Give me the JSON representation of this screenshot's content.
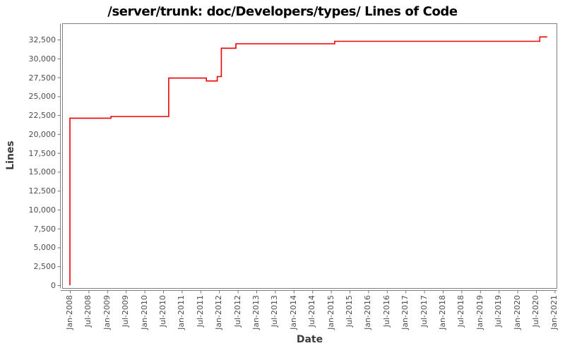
{
  "chart_data": {
    "type": "line",
    "style": "step-after",
    "title": "/server/trunk: doc/Developers/types/ Lines of Code",
    "xlabel": "Date",
    "ylabel": "Lines",
    "grid": false,
    "legend": false,
    "line_color": "#ee0000",
    "axis_color": "#808080",
    "tick_color": "#757575",
    "tick_label_color": "#4d4d4d",
    "xlim": [
      "Jan-2008",
      "Jan-2021"
    ],
    "ylim": [
      0,
      32500
    ],
    "y_axis": {
      "min": 0,
      "max": 32500,
      "step": 2500,
      "tick_labels": [
        "0",
        "2,500",
        "5,000",
        "7,500",
        "10,000",
        "12,500",
        "15,000",
        "17,500",
        "20,000",
        "22,500",
        "25,000",
        "27,500",
        "30,000",
        "32,500"
      ]
    },
    "x_axis": {
      "tick_labels": [
        "Jan-2008",
        "Jul-2008",
        "Jan-2009",
        "Jul-2009",
        "Jan-2010",
        "Jul-2010",
        "Jan-2011",
        "Jul-2011",
        "Jan-2012",
        "Jul-2012",
        "Jan-2013",
        "Jul-2013",
        "Jan-2014",
        "Jul-2014",
        "Jan-2015",
        "Jul-2015",
        "Jan-2016",
        "Jul-2016",
        "Jan-2017",
        "Jul-2017",
        "Jan-2018",
        "Jul-2018",
        "Jan-2019",
        "Jul-2019",
        "Jan-2020",
        "Jul-2020",
        "Jan-2021"
      ]
    },
    "series": [
      {
        "name": "Lines of Code",
        "color": "#ee0000",
        "points": [
          {
            "date": "Jan-2008",
            "t": 2008.0,
            "value": 0
          },
          {
            "date": "Jan-2008",
            "t": 2008.0,
            "value": 22100
          },
          {
            "date": "Feb-2009",
            "t": 2009.1,
            "value": 22320
          },
          {
            "date": "Sep-2010",
            "t": 2010.65,
            "value": 27400
          },
          {
            "date": "Sep-2011",
            "t": 2011.66,
            "value": 27020
          },
          {
            "date": "Dec-2011",
            "t": 2011.95,
            "value": 27600
          },
          {
            "date": "Jan-2012",
            "t": 2012.06,
            "value": 31350
          },
          {
            "date": "Jun-2012",
            "t": 2012.45,
            "value": 31940
          },
          {
            "date": "Feb-2015",
            "t": 2015.1,
            "value": 32270
          },
          {
            "date": "Aug-2020",
            "t": 2020.6,
            "value": 32850
          },
          {
            "date": "Oct-2020",
            "t": 2020.8,
            "value": 32850
          }
        ]
      }
    ]
  }
}
